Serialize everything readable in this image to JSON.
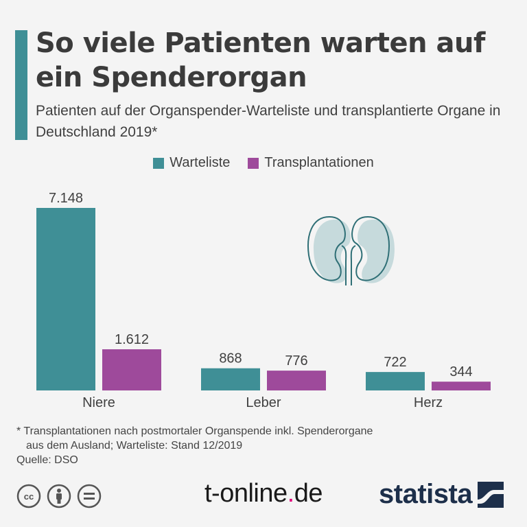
{
  "title": "So viele Patienten warten auf ein Spenderorgan",
  "subtitle": "Patienten auf der Organspender-Warteliste und transplantierte Organe in Deutschland 2019*",
  "colors": {
    "accent": "#3f8f96",
    "warteliste": "#3f8f96",
    "transplantationen": "#9e4a9b"
  },
  "legend": {
    "warteliste": "Warteliste",
    "transplantationen": "Transplantationen"
  },
  "icon": "kidney-icon",
  "chart_data": {
    "type": "bar",
    "categories": [
      "Niere",
      "Leber",
      "Herz"
    ],
    "series": [
      {
        "name": "Warteliste",
        "values": [
          7148,
          868,
          722
        ],
        "labels": [
          "7.148",
          "868",
          "722"
        ]
      },
      {
        "name": "Transplantationen",
        "values": [
          1612,
          776,
          344
        ],
        "labels": [
          "1.612",
          "776",
          "344"
        ]
      }
    ],
    "ylim": [
      0,
      7148
    ],
    "grid": false,
    "legend": "top-center",
    "xlabel": "",
    "ylabel": ""
  },
  "footnote": {
    "line1": "* Transplantationen nach postmortaler Organspende inkl. Spenderorgane",
    "line2": "aus dem Ausland; Warteliste: Stand 12/2019",
    "source": "Quelle: DSO"
  },
  "branding": {
    "tonline_main": "t-online",
    "tonline_dot": ".",
    "tonline_tld": "de",
    "statista": "statista"
  }
}
